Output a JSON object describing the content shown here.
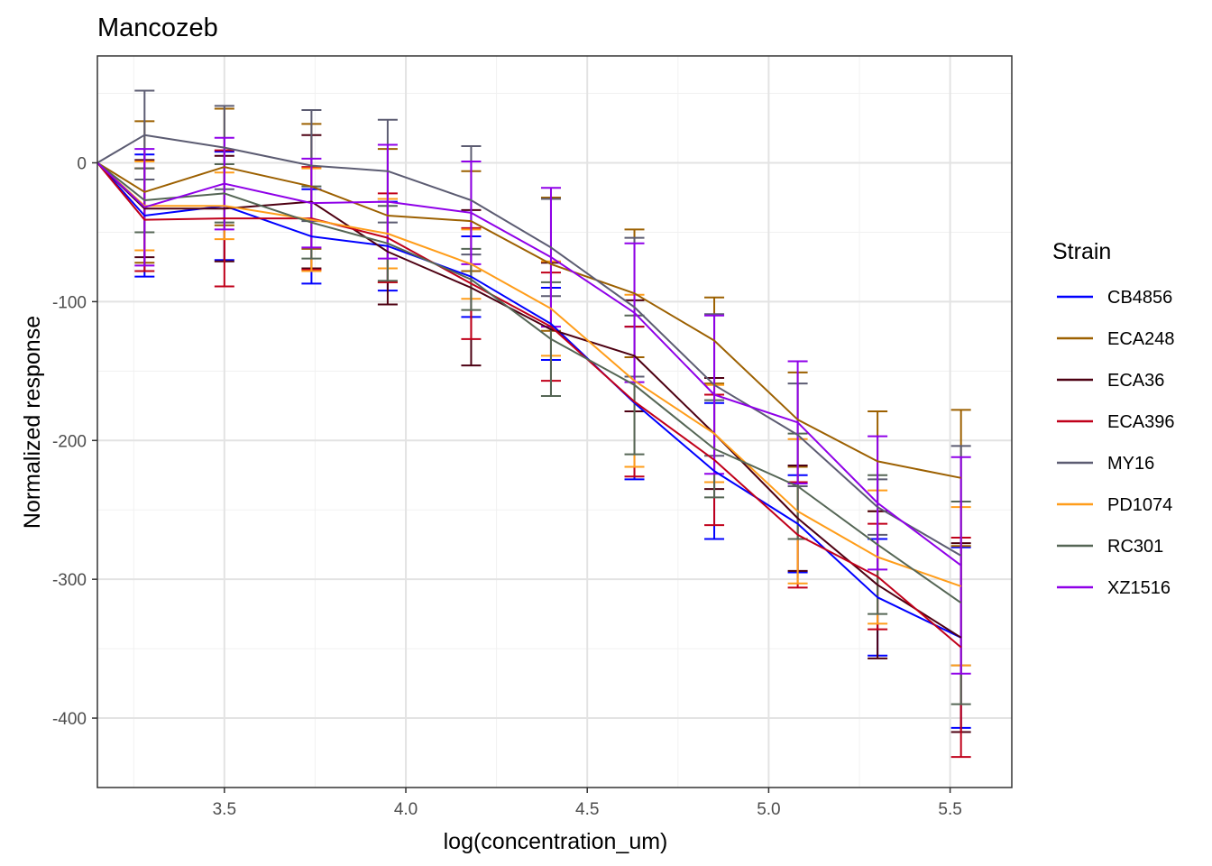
{
  "chart_data": {
    "type": "line",
    "title": "Mancozeb",
    "xlabel": "log(concentration_um)",
    "ylabel": "Normalized response",
    "xlim": [
      3.15,
      5.67
    ],
    "ylim": [
      -450,
      77
    ],
    "x_ticks": [
      {
        "value": 3.5,
        "label": "3.5"
      },
      {
        "value": 4.0,
        "label": "4.0"
      },
      {
        "value": 4.5,
        "label": "4.5"
      },
      {
        "value": 5.0,
        "label": "5.0"
      },
      {
        "value": 5.5,
        "label": "5.5"
      }
    ],
    "y_ticks": [
      {
        "value": 0,
        "label": "0"
      },
      {
        "value": -100,
        "label": "-100"
      },
      {
        "value": -200,
        "label": "-200"
      },
      {
        "value": -300,
        "label": "-300"
      },
      {
        "value": -400,
        "label": "-400"
      }
    ],
    "legend_title": "Strain",
    "legend_position": "right",
    "x": [
      3.15,
      3.28,
      3.5,
      3.74,
      3.95,
      4.18,
      4.4,
      4.63,
      4.85,
      5.08,
      5.3,
      5.53
    ],
    "series": [
      {
        "name": "CB4856",
        "color": "#0000ff",
        "values": [
          0,
          -38,
          -31,
          -53,
          -60,
          -82,
          -116,
          -173,
          -222,
          -260,
          -313,
          -342
        ],
        "errors": [
          0,
          44,
          39,
          34,
          32,
          29,
          26,
          55,
          49,
          35,
          42,
          65
        ]
      },
      {
        "name": "ECA248",
        "color": "#9c6000",
        "values": [
          0,
          -21,
          -3,
          -17,
          -38,
          -42,
          -73,
          -94,
          -128,
          -185,
          -215,
          -227
        ],
        "errors": [
          0,
          51,
          42,
          45,
          48,
          36,
          48,
          46,
          31,
          34,
          36,
          49
        ]
      },
      {
        "name": "ECA36",
        "color": "#4d0012",
        "values": [
          0,
          -33,
          -33,
          -28,
          -64,
          -90,
          -120,
          -139,
          -195,
          -256,
          -304,
          -342
        ],
        "errors": [
          0,
          35,
          38,
          48,
          38,
          56,
          48,
          40,
          40,
          38,
          53,
          68
        ]
      },
      {
        "name": "ECA396",
        "color": "#c0001a",
        "values": [
          0,
          -41,
          -40,
          -40,
          -54,
          -87,
          -118,
          -172,
          -214,
          -268,
          -298,
          -349
        ],
        "errors": [
          0,
          37,
          49,
          37,
          32,
          40,
          39,
          54,
          47,
          38,
          38,
          79
        ]
      },
      {
        "name": "MY16",
        "color": "#5c5c72",
        "values": [
          0,
          20,
          11,
          -2,
          -6,
          -27,
          -61,
          -104,
          -160,
          -196,
          -248,
          -283
        ],
        "errors": [
          0,
          32,
          30,
          40,
          37,
          39,
          35,
          50,
          51,
          37,
          20,
          79
        ]
      },
      {
        "name": "PD1074",
        "color": "#ff9d1a",
        "values": [
          0,
          -31,
          -31,
          -41,
          -51,
          -73,
          -105,
          -157,
          -195,
          -251,
          -284,
          -305
        ],
        "errors": [
          0,
          32,
          24,
          37,
          25,
          25,
          34,
          62,
          35,
          52,
          48,
          57
        ]
      },
      {
        "name": "RC301",
        "color": "#556655",
        "values": [
          0,
          -27,
          -22,
          -43,
          -58,
          -84,
          -127,
          -160,
          -206,
          -233,
          -275,
          -317
        ],
        "errors": [
          0,
          23,
          21,
          26,
          27,
          22,
          41,
          50,
          35,
          38,
          50,
          73
        ]
      },
      {
        "name": "XZ1516",
        "color": "#8f00e8",
        "values": [
          0,
          -32,
          -15,
          -29,
          -28,
          -36,
          -68,
          -108,
          -167,
          -187,
          -245,
          -290
        ],
        "errors": [
          0,
          42,
          33,
          32,
          41,
          37,
          50,
          50,
          57,
          44,
          48,
          78
        ]
      }
    ]
  }
}
